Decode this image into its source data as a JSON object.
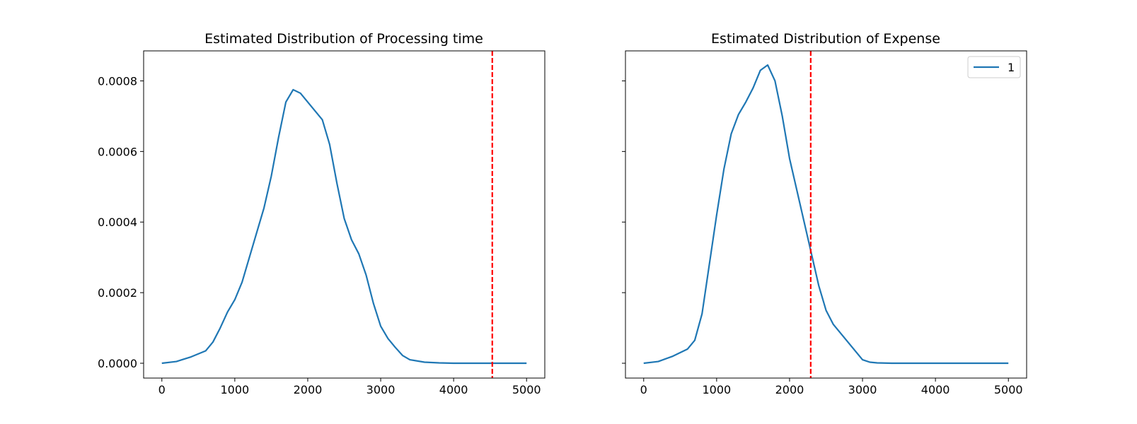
{
  "figure": {
    "background": "#ffffff"
  },
  "chart_data": [
    {
      "type": "line",
      "title": "Estimated Distribution of Processing time",
      "xlabel": "",
      "ylabel": "",
      "xlim": [
        -250,
        5250
      ],
      "ylim": [
        -4.2e-05,
        0.000885
      ],
      "xticks": [
        0,
        1000,
        2000,
        3000,
        4000,
        5000
      ],
      "xtick_labels": [
        "0",
        "1000",
        "2000",
        "3000",
        "4000",
        "5000"
      ],
      "yticks": [
        0,
        0.0002,
        0.0004,
        0.0006,
        0.0008
      ],
      "ytick_labels": [
        "0.0000",
        "0.0002",
        "0.0004",
        "0.0006",
        "0.0008"
      ],
      "show_yticklabels": true,
      "grid": false,
      "legend": null,
      "series": [
        {
          "color": "#1f77b4",
          "x": [
            0,
            200,
            400,
            600,
            700,
            800,
            900,
            1000,
            1100,
            1200,
            1300,
            1400,
            1500,
            1600,
            1700,
            1800,
            1900,
            2000,
            2100,
            2200,
            2300,
            2400,
            2500,
            2600,
            2700,
            2800,
            2900,
            3000,
            3100,
            3200,
            3300,
            3400,
            3600,
            3800,
            4000,
            4500,
            5000
          ],
          "y": [
            0.0,
            5e-06,
            1.8e-05,
            3.5e-05,
            6e-05,
            0.0001,
            0.000145,
            0.00018,
            0.00023,
            0.0003,
            0.00037,
            0.00044,
            0.00053,
            0.00064,
            0.00074,
            0.000775,
            0.000765,
            0.00074,
            0.000715,
            0.00069,
            0.00062,
            0.00051,
            0.00041,
            0.00035,
            0.00031,
            0.00025,
            0.00017,
            0.000105,
            7e-05,
            4.5e-05,
            2.2e-05,
            1e-05,
            3e-06,
            1e-06,
            0.0,
            0.0,
            0.0
          ]
        }
      ],
      "reference_lines": [
        {
          "x": 4530,
          "color": "#ff0000",
          "style": "dashed"
        }
      ]
    },
    {
      "type": "line",
      "title": "Estimated Distribution of Expense",
      "xlabel": "",
      "ylabel": "",
      "xlim": [
        -250,
        5250
      ],
      "ylim": [
        -4.2e-05,
        0.000885
      ],
      "xticks": [
        0,
        1000,
        2000,
        3000,
        4000,
        5000
      ],
      "xtick_labels": [
        "0",
        "1000",
        "2000",
        "3000",
        "4000",
        "5000"
      ],
      "yticks": [
        0,
        0.0002,
        0.0004,
        0.0006,
        0.0008
      ],
      "ytick_labels": [
        "0.0000",
        "0.0002",
        "0.0004",
        "0.0006",
        "0.0008"
      ],
      "show_yticklabels": false,
      "grid": false,
      "legend": {
        "position": "upper right",
        "entries": [
          "1"
        ]
      },
      "series": [
        {
          "name": "1",
          "color": "#1f77b4",
          "x": [
            0,
            200,
            400,
            600,
            700,
            800,
            900,
            1000,
            1100,
            1200,
            1300,
            1400,
            1500,
            1600,
            1700,
            1800,
            1900,
            2000,
            2100,
            2200,
            2300,
            2400,
            2500,
            2600,
            2700,
            2800,
            2900,
            3000,
            3100,
            3200,
            3400,
            3600,
            3800,
            4000,
            4500,
            5000
          ],
          "y": [
            0.0,
            5e-06,
            2e-05,
            4e-05,
            6.5e-05,
            0.00014,
            0.00028,
            0.00042,
            0.00055,
            0.00065,
            0.000705,
            0.00074,
            0.00078,
            0.00083,
            0.000845,
            0.0008,
            0.0007,
            0.00058,
            0.00049,
            0.0004,
            0.00031,
            0.00022,
            0.00015,
            0.00011,
            8.5e-05,
            6e-05,
            3.5e-05,
            1e-05,
            3e-06,
            1e-06,
            0.0,
            0.0,
            0.0,
            0.0,
            0.0,
            0.0
          ]
        }
      ],
      "reference_lines": [
        {
          "x": 2290,
          "color": "#ff0000",
          "style": "dashed"
        }
      ]
    }
  ]
}
